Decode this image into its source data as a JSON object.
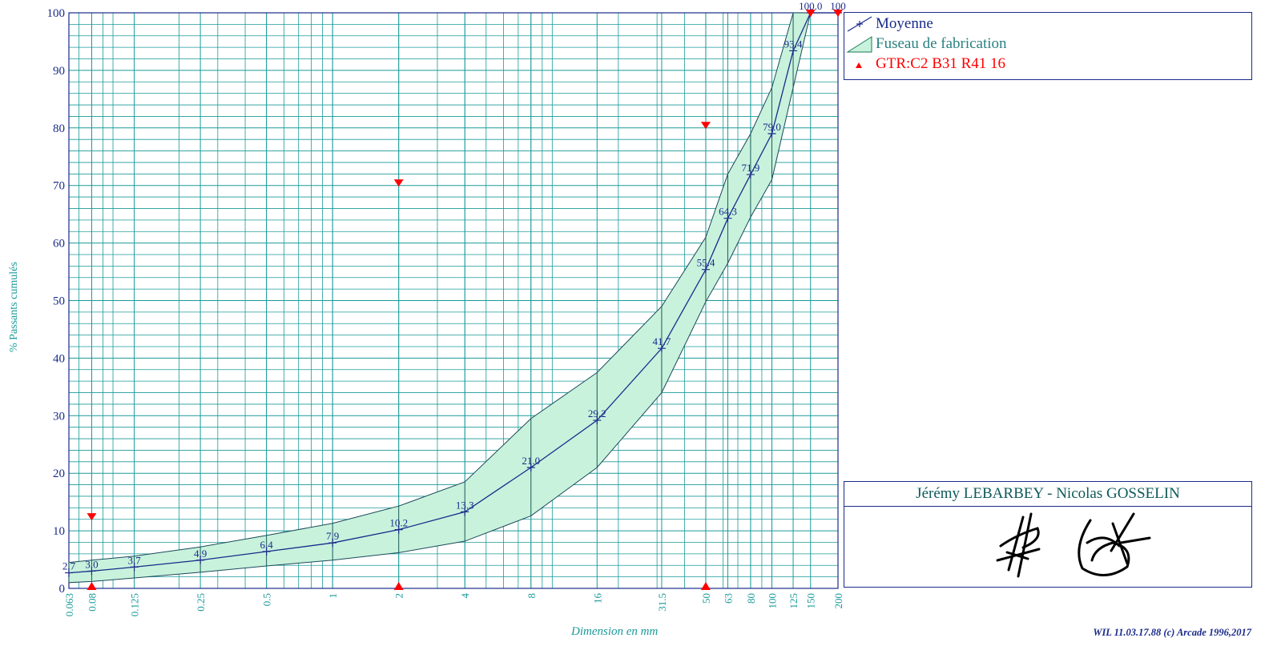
{
  "legend": {
    "mean_label": "Moyenne",
    "band_label": "Fuseau de fabrication",
    "spec_label": "GTR:C2 B31 R41 16"
  },
  "signature_box": {
    "title": "Jérémy LEBARBEY - Nicolas GOSSELIN"
  },
  "footer": "WIL 11.03.17.88 (c) Arcade 1996,2017",
  "colors": {
    "grid": "#1a9a9a",
    "axis": "#1a2b8a",
    "band_fill": "#c8f2dc",
    "mean_line": "#1a2b8a",
    "spec_marker": "#ff0000",
    "tick_text": "#1a9a9a"
  },
  "chart_data": {
    "type": "line",
    "x_scale": "log",
    "xlabel": "Dimension en mm",
    "ylabel": "% Passants cumulés",
    "xlim": [
      0.063,
      200
    ],
    "ylim": [
      0,
      100
    ],
    "grid": true,
    "legend_position": "top-right",
    "x_tick_labels": [
      "0.063",
      "0.08",
      "0.125",
      "0.25",
      "0.5",
      "1",
      "2",
      "4",
      "8",
      "16",
      "31.5",
      "50",
      "63",
      "80",
      "100",
      "125",
      "150",
      "200"
    ],
    "y_tick_labels": [
      "0",
      "10",
      "20",
      "30",
      "40",
      "50",
      "60",
      "70",
      "80",
      "90",
      "100"
    ],
    "series": [
      {
        "name": "Moyenne",
        "x": [
          0.063,
          0.08,
          0.125,
          0.25,
          0.5,
          1,
          2,
          4,
          8,
          16,
          31.5,
          50,
          63,
          80,
          100,
          125,
          150,
          200
        ],
        "y": [
          2.7,
          3.0,
          3.7,
          4.9,
          6.4,
          7.9,
          10.2,
          13.3,
          21.0,
          29.2,
          41.7,
          55.4,
          64.3,
          71.9,
          79.0,
          93.4,
          100.0,
          100.0
        ],
        "labels": [
          "2.7",
          "3.0",
          "3.7",
          "4.9",
          "6.4",
          "7.9",
          "10.2",
          "13.3",
          "21.0",
          "29.2",
          "41.7",
          "55.4",
          "64.3",
          "71.9",
          "79.0",
          "93.4",
          "100.0",
          "100"
        ]
      },
      {
        "name": "Fuseau de fabrication",
        "x": [
          0.063,
          0.08,
          0.125,
          0.25,
          0.5,
          1,
          2,
          4,
          8,
          16,
          31.5,
          50,
          63,
          80,
          100,
          125,
          150,
          200
        ],
        "y_upper": [
          4.5,
          4.9,
          5.6,
          7.2,
          9.2,
          11.3,
          14.3,
          18.5,
          29.5,
          37.5,
          49.0,
          61.0,
          72.0,
          79.0,
          87.0,
          100,
          100,
          100
        ],
        "y_lower": [
          1.0,
          1.2,
          1.8,
          2.8,
          3.9,
          4.9,
          6.2,
          8.2,
          12.6,
          21.0,
          34.0,
          49.8,
          56.5,
          64.5,
          71.0,
          87.0,
          100,
          100
        ]
      },
      {
        "name": "GTR:C2 B31 R41 16",
        "lower_x": [
          0.08,
          2,
          50
        ],
        "lower_y": [
          0,
          0,
          0
        ],
        "upper_x": [
          0.08,
          2,
          50,
          150,
          200
        ],
        "upper_y": [
          12.5,
          70.5,
          80.5,
          100,
          100
        ]
      }
    ]
  }
}
